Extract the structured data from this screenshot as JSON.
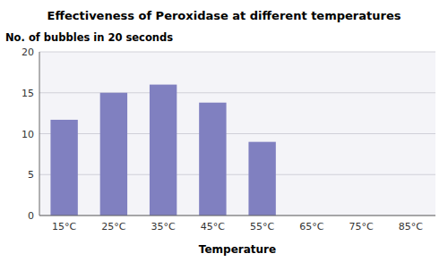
{
  "chart_data": {
    "type": "bar",
    "title": "Effectiveness of Peroxidase at different temperatures",
    "ylabel": "No. of bubbles in 20 seconds",
    "xlabel": "Temperature",
    "categories": [
      "15°C",
      "25°C",
      "35°C",
      "45°C",
      "55°C",
      "65°C",
      "75°C",
      "85°C"
    ],
    "values": [
      11.7,
      15.0,
      16.0,
      13.8,
      9.0,
      0,
      0,
      0
    ],
    "color": "#8080c0",
    "ylim": [
      0,
      20
    ],
    "yticks": [
      0,
      5,
      10,
      15,
      20
    ],
    "grid": true
  }
}
